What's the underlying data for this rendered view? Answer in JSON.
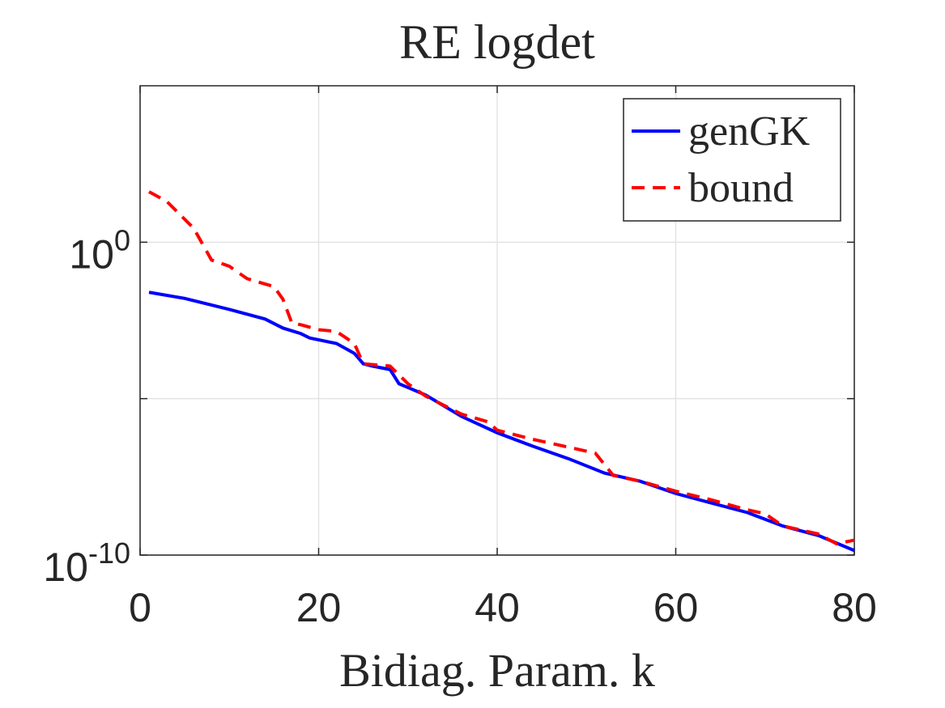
{
  "chart_data": {
    "type": "line",
    "title": "RE logdet",
    "xlabel": "Bidiag. Param. k",
    "xlim": [
      0,
      80
    ],
    "xticks": [
      0,
      20,
      40,
      60,
      80
    ],
    "ylim": [
      1e-10,
      100000.0
    ],
    "log_y": true,
    "yticks": [
      {
        "value": 1e-10,
        "label": "10^-10"
      },
      {
        "value": 1e-05,
        "label": null
      },
      {
        "value": 1,
        "label": "10^0"
      }
    ],
    "grid": true,
    "legend": "upper right",
    "series": [
      {
        "name": "genGK",
        "color": "#0000ff",
        "dash": "solid",
        "x": [
          1,
          5,
          10,
          14,
          16,
          18,
          19,
          22,
          24,
          25,
          26,
          28,
          29,
          32,
          36,
          40,
          44,
          48,
          52,
          56,
          60,
          64,
          68,
          72,
          76,
          80
        ],
        "values": [
          0.025,
          0.016,
          0.0071,
          0.0035,
          0.0018,
          0.0012,
          0.00087,
          0.00058,
          0.00028,
          0.00013,
          0.00011,
          8.5e-05,
          3e-05,
          1.3e-05,
          2.7e-06,
          8.1e-07,
          3e-07,
          1.2e-07,
          4.2e-08,
          2.3e-08,
          9.3e-09,
          4.6e-09,
          2.3e-09,
          8.5e-10,
          4.2e-10,
          1.4e-10
        ]
      },
      {
        "name": "bound",
        "color": "#ff0000",
        "dash": "dashed",
        "x": [
          1,
          3,
          6,
          8,
          10,
          12,
          15,
          16,
          17,
          18,
          20,
          22,
          24,
          25,
          28,
          30,
          32,
          36,
          39,
          40,
          44,
          48,
          51,
          53,
          56,
          60,
          64,
          68,
          70,
          72,
          76,
          78,
          80
        ],
        "values": [
          41,
          20,
          2.8,
          0.27,
          0.17,
          0.068,
          0.038,
          0.015,
          0.0026,
          0.0023,
          0.0016,
          0.0014,
          0.00058,
          0.00013,
          0.00011,
          3e-05,
          1.2e-05,
          3.2e-06,
          1.8e-06,
          9.8e-07,
          5e-07,
          2.8e-07,
          1.8e-07,
          3.5e-08,
          2.3e-08,
          1.1e-08,
          5.8e-09,
          2.8e-09,
          2.1e-09,
          8.5e-10,
          4.7e-10,
          2.3e-10,
          3e-10
        ]
      }
    ]
  }
}
